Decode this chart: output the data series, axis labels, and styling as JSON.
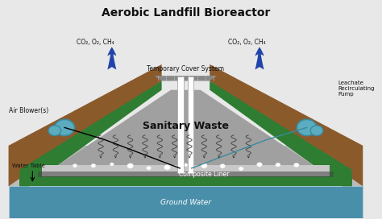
{
  "title": "Aerobic Landfill Bioreactor",
  "title_fontsize": 10,
  "bg": "#e8e8e8",
  "brown": "#8B5A2B",
  "green": "#2E7D32",
  "gray_waste": "#A0A0A0",
  "light_gray": "#C0C0C0",
  "ground_gray": "#BBBBBB",
  "ground_water": "#4a8faa",
  "arrow_blue": "#2244aa",
  "pump_cyan": "#5AACBE",
  "text_dark": "#111111",
  "cover_gray": "#888888",
  "white": "#FFFFFF",
  "labels": {
    "sanitary_waste": "Sanitary Waste",
    "composite_liner": "Composite Liner",
    "ground_water": "Ground Water",
    "water_table": "Water Table",
    "temp_cover": "Temporary Cover System",
    "air_blower": "Air Blower(s)",
    "leachate_pump": "Leachate\nRecirculating\nPump",
    "gas_left": "CO₂, O₂, CH₄",
    "gas_right": "CO₂, O₂, CH₄"
  }
}
